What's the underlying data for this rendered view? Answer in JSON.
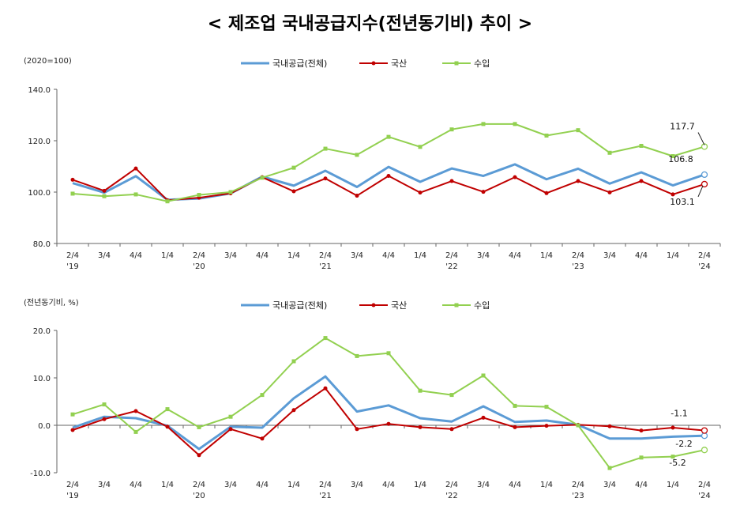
{
  "page": {
    "title": "< 제조업 국내공급지수(전년동기비) 추이 >"
  },
  "colors": {
    "domestic_total": "#5b9bd5",
    "domestic_product": "#c00000",
    "import": "#92d050",
    "axis": "#666666"
  },
  "chart_data": [
    {
      "type": "line",
      "unit_label": "(2020=100)",
      "ylim": [
        80,
        140
      ],
      "yticks": [
        "140.0",
        "120.0",
        "100.0",
        "80.0"
      ],
      "yticks_values": [
        140,
        120,
        100,
        80
      ],
      "grid": false,
      "legend_position": "top-center",
      "categories": [
        "2/4",
        "3/4",
        "4/4",
        "1/4",
        "2/4",
        "3/4",
        "4/4",
        "1/4",
        "2/4",
        "3/4",
        "4/4",
        "1/4",
        "2/4",
        "3/4",
        "4/4",
        "1/4",
        "2/4",
        "3/4",
        "4/4",
        "1/4",
        "2/4"
      ],
      "year_labels": [
        {
          "index": 0,
          "text": "'19"
        },
        {
          "index": 4,
          "text": "'20"
        },
        {
          "index": 8,
          "text": "'21"
        },
        {
          "index": 12,
          "text": "'22"
        },
        {
          "index": 16,
          "text": "'23"
        },
        {
          "index": 20,
          "text": "'24"
        }
      ],
      "series": [
        {
          "name": "국내공급(전체)",
          "key": "domestic_total",
          "values": [
            103.5,
            99.8,
            106.2,
            97.0,
            97.5,
            99.5,
            106.0,
            102.5,
            108.3,
            102.0,
            109.8,
            104.0,
            109.2,
            106.3,
            110.8,
            105.0,
            109.1,
            103.3,
            107.7,
            102.6,
            106.8
          ]
        },
        {
          "name": "국산",
          "key": "domestic_product",
          "values": [
            104.8,
            100.5,
            109.2,
            96.8,
            97.8,
            99.5,
            105.8,
            100.3,
            105.3,
            98.6,
            106.3,
            99.8,
            104.3,
            100.1,
            105.8,
            99.6,
            104.3,
            99.9,
            104.3,
            99.1,
            103.1
          ]
        },
        {
          "name": "수입",
          "key": "import",
          "values": [
            99.4,
            98.4,
            99.1,
            96.4,
            98.9,
            100.0,
            105.6,
            109.5,
            116.9,
            114.5,
            121.5,
            117.6,
            124.4,
            126.5,
            126.5,
            122.0,
            124.1,
            115.3,
            118.0,
            114.0,
            117.7
          ]
        }
      ],
      "data_labels": [
        {
          "series": "import",
          "text": "117.7"
        },
        {
          "series": "domestic_total",
          "text": "106.8"
        },
        {
          "series": "domestic_product",
          "text": "103.1"
        }
      ]
    },
    {
      "type": "line",
      "unit_label": "(전년동기비, %)",
      "ylim": [
        -10,
        20
      ],
      "yticks": [
        "20.0",
        "10.0",
        "0.0",
        "-10.0"
      ],
      "yticks_values": [
        20,
        10,
        0,
        -10
      ],
      "grid": false,
      "legend_position": "top-center",
      "categories": [
        "2/4",
        "3/4",
        "4/4",
        "1/4",
        "2/4",
        "3/4",
        "4/4",
        "1/4",
        "2/4",
        "3/4",
        "4/4",
        "1/4",
        "2/4",
        "3/4",
        "4/4",
        "1/4",
        "2/4",
        "3/4",
        "4/4",
        "1/4",
        "2/4"
      ],
      "year_labels": [
        {
          "index": 0,
          "text": "'19"
        },
        {
          "index": 4,
          "text": "'20"
        },
        {
          "index": 8,
          "text": "'21"
        },
        {
          "index": 12,
          "text": "'22"
        },
        {
          "index": 16,
          "text": "'23"
        },
        {
          "index": 20,
          "text": "'24"
        }
      ],
      "series": [
        {
          "name": "국내공급(전체)",
          "key": "domestic_total",
          "values": [
            -0.5,
            1.8,
            1.5,
            -0.1,
            -5.0,
            -0.3,
            -0.5,
            5.7,
            10.3,
            2.9,
            4.2,
            1.5,
            0.8,
            4.0,
            0.7,
            1.0,
            0.1,
            -2.8,
            -2.8,
            -2.4,
            -2.2
          ]
        },
        {
          "name": "국산",
          "key": "domestic_product",
          "values": [
            -1.0,
            1.3,
            3.0,
            -0.3,
            -6.3,
            -0.8,
            -2.8,
            3.2,
            7.8,
            -0.8,
            0.3,
            -0.4,
            -0.8,
            1.6,
            -0.4,
            -0.1,
            0.1,
            -0.2,
            -1.1,
            -0.5,
            -1.1
          ]
        },
        {
          "name": "수입",
          "key": "import",
          "values": [
            2.3,
            4.4,
            -1.4,
            3.4,
            -0.4,
            1.8,
            6.4,
            13.5,
            18.4,
            14.6,
            15.2,
            7.3,
            6.4,
            10.5,
            4.1,
            3.9,
            0.0,
            -9.0,
            -6.8,
            -6.6,
            -5.2
          ]
        }
      ],
      "data_labels": [
        {
          "series": "domestic_product",
          "text": "-1.1"
        },
        {
          "series": "domestic_total",
          "text": "-2.2"
        },
        {
          "series": "import",
          "text": "-5.2"
        }
      ]
    }
  ]
}
